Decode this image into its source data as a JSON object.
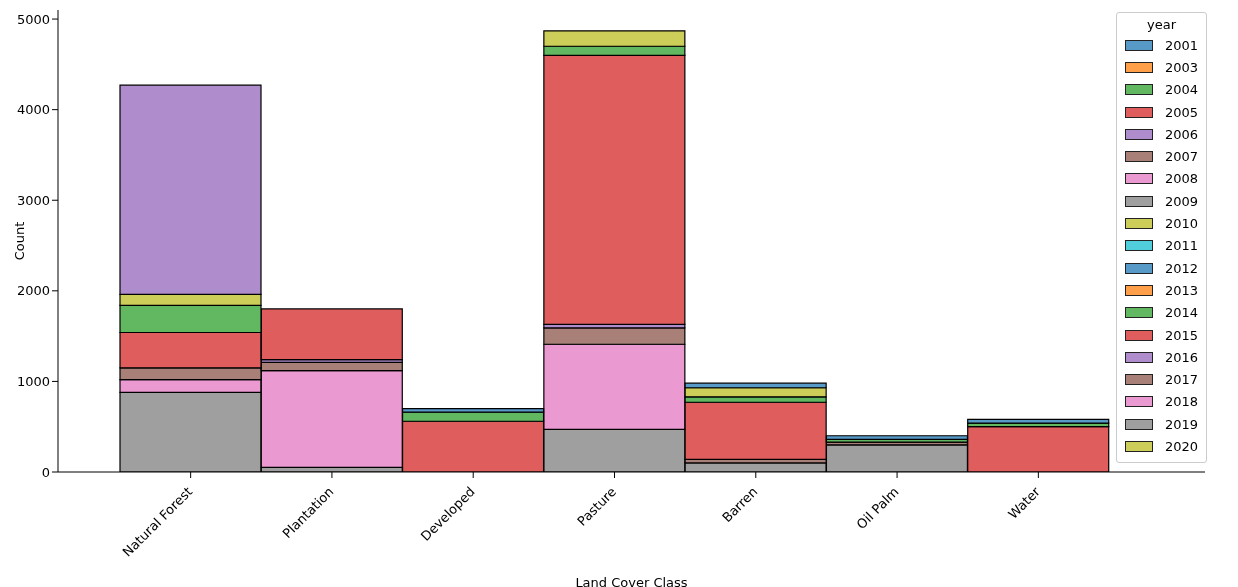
{
  "chart_data": {
    "type": "bar",
    "stacked": true,
    "xlabel": "Land Cover Class",
    "ylabel": "Count",
    "legend_title": "year",
    "legend": "right",
    "grid": false,
    "categories": [
      "Natural Forest",
      "Plantation",
      "Developed",
      "Pasture",
      "Barren",
      "Oil Palm",
      "Water"
    ],
    "ylim": [
      0,
      5100
    ],
    "yticks": [
      0,
      1000,
      2000,
      3000,
      4000,
      5000
    ],
    "series": [
      {
        "name": "2020",
        "color": "#cdcd59",
        "values": [
          0,
          0,
          0,
          0,
          0,
          0,
          0
        ]
      },
      {
        "name": "2019",
        "color": "#9f9f9f",
        "values": [
          880,
          50,
          0,
          470,
          100,
          300,
          0
        ]
      },
      {
        "name": "2018",
        "color": "#ea99d1",
        "values": [
          140,
          1070,
          0,
          940,
          0,
          0,
          0
        ]
      },
      {
        "name": "2017",
        "color": "#a98078",
        "values": [
          130,
          90,
          0,
          180,
          40,
          30,
          0
        ]
      },
      {
        "name": "2016",
        "color": "#af8dcd",
        "values": [
          0,
          30,
          0,
          40,
          0,
          0,
          0
        ]
      },
      {
        "name": "2015",
        "color": "#e05d5e",
        "values": [
          390,
          560,
          560,
          2970,
          630,
          0,
          500
        ]
      },
      {
        "name": "2014",
        "color": "#61b861",
        "values": [
          300,
          0,
          100,
          100,
          60,
          30,
          40
        ]
      },
      {
        "name": "2013",
        "color": "#ff9f4a",
        "values": [
          0,
          0,
          0,
          0,
          0,
          0,
          0
        ]
      },
      {
        "name": "2012",
        "color": "#5799c7",
        "values": [
          0,
          0,
          0,
          0,
          0,
          0,
          0
        ]
      },
      {
        "name": "2011",
        "color": "#51cedb",
        "values": [
          0,
          0,
          0,
          0,
          0,
          0,
          0
        ]
      },
      {
        "name": "2010",
        "color": "#cdcd59",
        "values": [
          120,
          0,
          0,
          170,
          100,
          0,
          0
        ]
      },
      {
        "name": "2009",
        "color": "#9f9f9f",
        "values": [
          0,
          0,
          0,
          0,
          0,
          0,
          0
        ]
      },
      {
        "name": "2008",
        "color": "#ea99d1",
        "values": [
          0,
          0,
          0,
          0,
          0,
          0,
          0
        ]
      },
      {
        "name": "2007",
        "color": "#a98078",
        "values": [
          0,
          0,
          0,
          0,
          0,
          0,
          0
        ]
      },
      {
        "name": "2006",
        "color": "#af8dcd",
        "values": [
          2310,
          0,
          0,
          0,
          0,
          0,
          0
        ]
      },
      {
        "name": "2005",
        "color": "#e05d5e",
        "values": [
          0,
          0,
          0,
          0,
          0,
          0,
          0
        ]
      },
      {
        "name": "2004",
        "color": "#61b861",
        "values": [
          0,
          0,
          0,
          0,
          0,
          0,
          0
        ]
      },
      {
        "name": "2003",
        "color": "#ff9f4a",
        "values": [
          0,
          0,
          0,
          0,
          0,
          0,
          0
        ]
      },
      {
        "name": "2001",
        "color": "#5799c7",
        "values": [
          0,
          0,
          40,
          0,
          50,
          40,
          40
        ]
      }
    ]
  }
}
